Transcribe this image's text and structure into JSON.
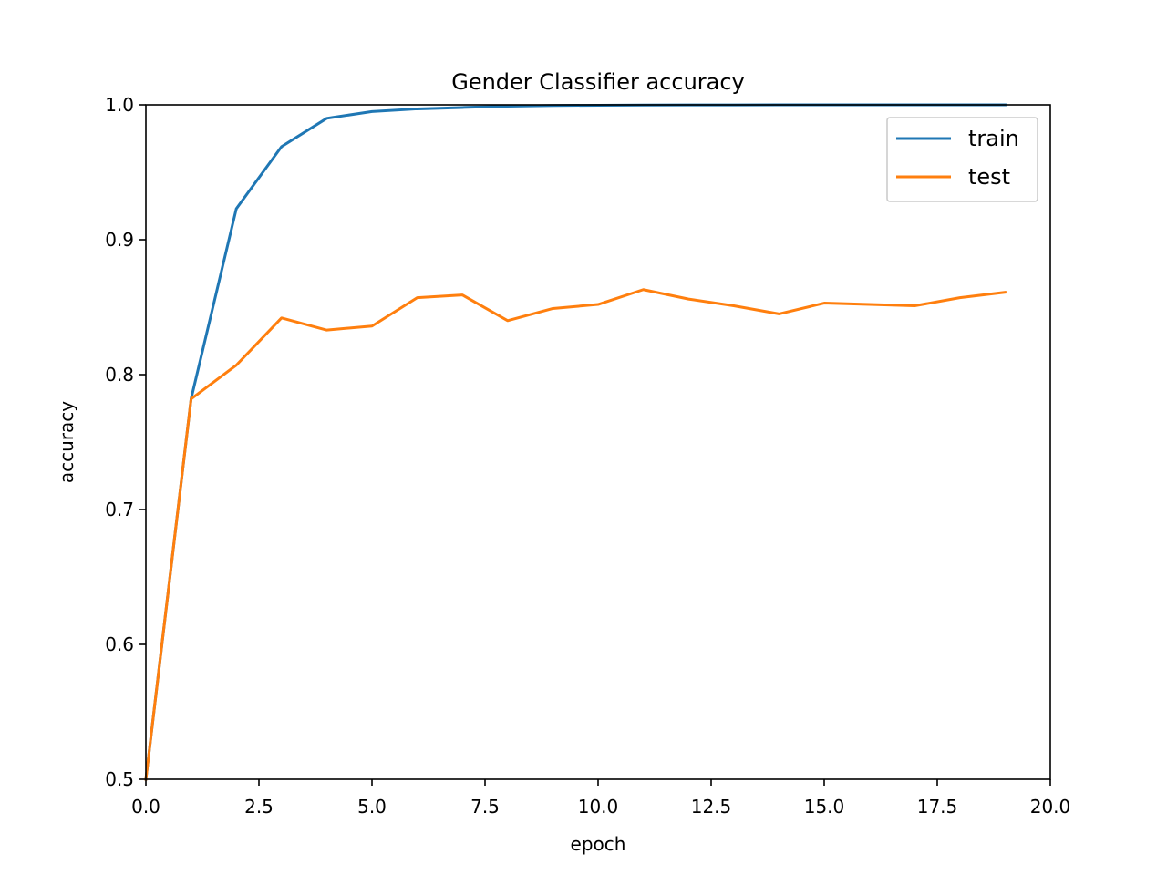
{
  "chart_data": {
    "type": "line",
    "title": "Gender Classifier accuracy",
    "xlabel": "epoch",
    "ylabel": "accuracy",
    "xlim": [
      0,
      20
    ],
    "ylim": [
      0.5,
      1.0
    ],
    "xticks": [
      0,
      2.5,
      5,
      7.5,
      10,
      12.5,
      15,
      17.5,
      20
    ],
    "xtick_labels": [
      "0.0",
      "2.5",
      "5.0",
      "7.5",
      "10.0",
      "12.5",
      "15.0",
      "17.5",
      "20.0"
    ],
    "yticks": [
      0.5,
      0.6,
      0.7,
      0.8,
      0.9,
      1.0
    ],
    "ytick_labels": [
      "0.5",
      "0.6",
      "0.7",
      "0.8",
      "0.9",
      "1.0"
    ],
    "grid": false,
    "legend_position": "top-right",
    "x": [
      0,
      1,
      2,
      3,
      4,
      5,
      6,
      7,
      8,
      9,
      10,
      11,
      12,
      13,
      14,
      15,
      16,
      17,
      18,
      19
    ],
    "series": [
      {
        "name": "train",
        "color": "#1f77b4",
        "values": [
          0.5,
          0.782,
          0.923,
          0.969,
          0.99,
          0.995,
          0.997,
          0.998,
          0.999,
          0.9995,
          0.9997,
          0.9998,
          0.9999,
          0.9999,
          1.0,
          1.0,
          1.0,
          1.0,
          1.0,
          1.0
        ]
      },
      {
        "name": "test",
        "color": "#ff7f0e",
        "values": [
          0.5,
          0.782,
          0.807,
          0.842,
          0.833,
          0.836,
          0.857,
          0.859,
          0.84,
          0.849,
          0.852,
          0.863,
          0.856,
          0.851,
          0.845,
          0.853,
          0.852,
          0.851,
          0.857,
          0.861
        ]
      }
    ]
  }
}
